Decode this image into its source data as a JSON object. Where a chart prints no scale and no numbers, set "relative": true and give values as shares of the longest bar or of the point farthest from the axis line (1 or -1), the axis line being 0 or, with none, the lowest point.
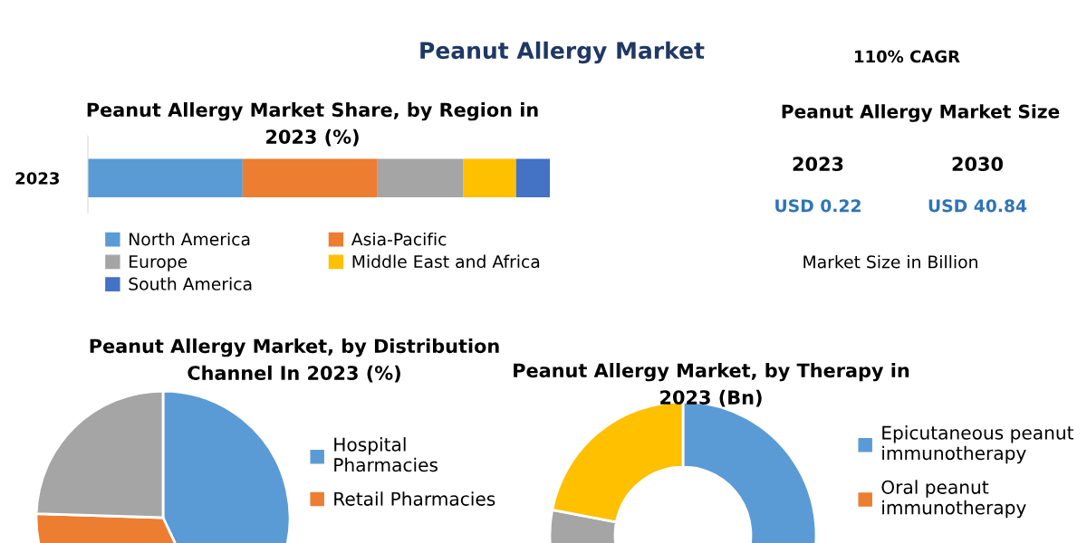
{
  "chart_data": [
    {
      "type": "bar",
      "orientation": "horizontal",
      "stacked": true,
      "relative": true,
      "title": "Peanut Allergy Market Share, by Region in 2023 (%)",
      "categories": [
        "2023"
      ],
      "legend": "bottom",
      "series": [
        {
          "name": "North America",
          "color": "#5b9bd5",
          "values": [
            0.335
          ]
        },
        {
          "name": "Asia-Pacific",
          "color": "#ed7d31",
          "values": [
            0.292
          ]
        },
        {
          "name": "Europe",
          "color": "#a5a5a5",
          "values": [
            0.186
          ]
        },
        {
          "name": "Middle East and Africa",
          "color": "#ffc000",
          "values": [
            0.114
          ]
        },
        {
          "name": "South America",
          "color": "#4472c4",
          "values": [
            0.073
          ]
        }
      ]
    },
    {
      "type": "pie",
      "title": "Peanut Allergy Market, by Distribution Channel In 2023 (%)",
      "categories": [
        "Hospital Pharmacies",
        "Retail Pharmacies",
        null
      ],
      "values": [
        43,
        32.5,
        24.5
      ],
      "colors": [
        "#5b9bd5",
        "#ed7d31",
        "#a5a5a5"
      ],
      "legend": "right"
    },
    {
      "type": "donut",
      "title": "Peanut Allergy Market, by Therapy in 2023 (Bn)",
      "categories": [
        "Epicutaneous peanut immunotherapy",
        "Oral peanut immunotherapy",
        null,
        null
      ],
      "values": [
        63,
        null,
        15,
        22
      ],
      "colors": [
        "#5b9bd5",
        "#ed7d31",
        "#a5a5a5",
        "#ffc000"
      ],
      "legend": "right"
    },
    {
      "type": "other",
      "title": "Peanut Allergy Market",
      "subtitle": "Peanut Allergy Market Size",
      "annotations": [
        "110% CAGR",
        "2023",
        "2030",
        "USD 0.22",
        "USD 40.84",
        "Market Size in Billion"
      ]
    }
  ]
}
